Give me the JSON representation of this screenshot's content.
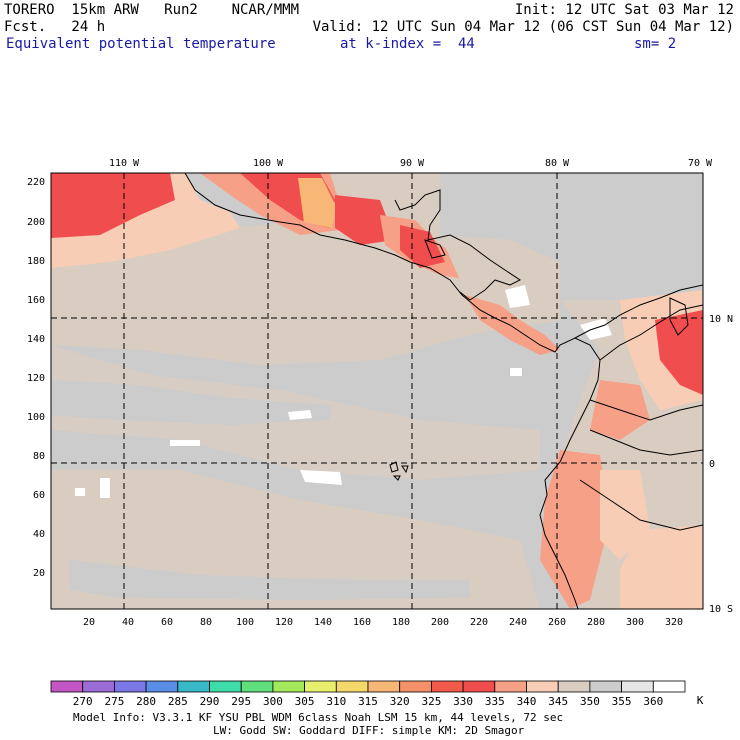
{
  "header": {
    "model": "TORERO  15km ARW   Run2    NCAR/MMM",
    "init": "Init: 12 UTC Sat 03 Mar 12",
    "fcst": "Fcst.   24 h",
    "valid": "Valid: 12 UTC Sun 04 Mar 12 (06 CST Sun 04 Mar 12)",
    "field": "Equivalent potential temperature",
    "level": "at k-index =  44",
    "smooth": "sm= 2"
  },
  "map": {
    "lon_labels": [
      "110 W",
      "100 W",
      "90 W",
      "80 W",
      "70 W"
    ],
    "lat_labels": [
      "10 N",
      "0",
      "10 S"
    ],
    "y_ticks": [
      "220",
      "200",
      "180",
      "160",
      "140",
      "120",
      "100",
      "80",
      "60",
      "40",
      "20"
    ],
    "x_ticks": [
      "20",
      "40",
      "60",
      "80",
      "100",
      "120",
      "140",
      "160",
      "180",
      "200",
      "220",
      "240",
      "260",
      "280",
      "300",
      "320"
    ]
  },
  "colorbar": {
    "unit": "K",
    "labels": [
      "270",
      "275",
      "280",
      "285",
      "290",
      "295",
      "300",
      "305",
      "310",
      "315",
      "320",
      "325",
      "330",
      "335",
      "340",
      "345",
      "350",
      "355",
      "360"
    ],
    "colors": [
      "#c455c4",
      "#9b6bd6",
      "#7b77e6",
      "#5a8ee6",
      "#39b9c8",
      "#3ddca8",
      "#5fe07c",
      "#a4e85c",
      "#e8ef6c",
      "#f5d86a",
      "#f7b877",
      "#f49168",
      "#f15a4a",
      "#f04e4e",
      "#f6a088",
      "#f7cdb5",
      "#d9cdc2",
      "#cccccc",
      "#e6e6e6",
      "#ffffff"
    ]
  },
  "footer": {
    "line1": "Model Info: V3.3.1   KF      YSU PBL  WDM 6class  Noah LSM  15 km,   44 levels,   72 sec",
    "line2": "LW: Godd SW: Goddard DIFF: simple KM: 2D Smagor"
  },
  "colors": {
    "background_field": "#cccccc",
    "field_tan": "#d9cdc2",
    "warm_peach": "#f7cdb5",
    "warm_salmon": "#f6a088",
    "hot_red": "#f04e4e",
    "hot_orange": "#f7b877"
  }
}
